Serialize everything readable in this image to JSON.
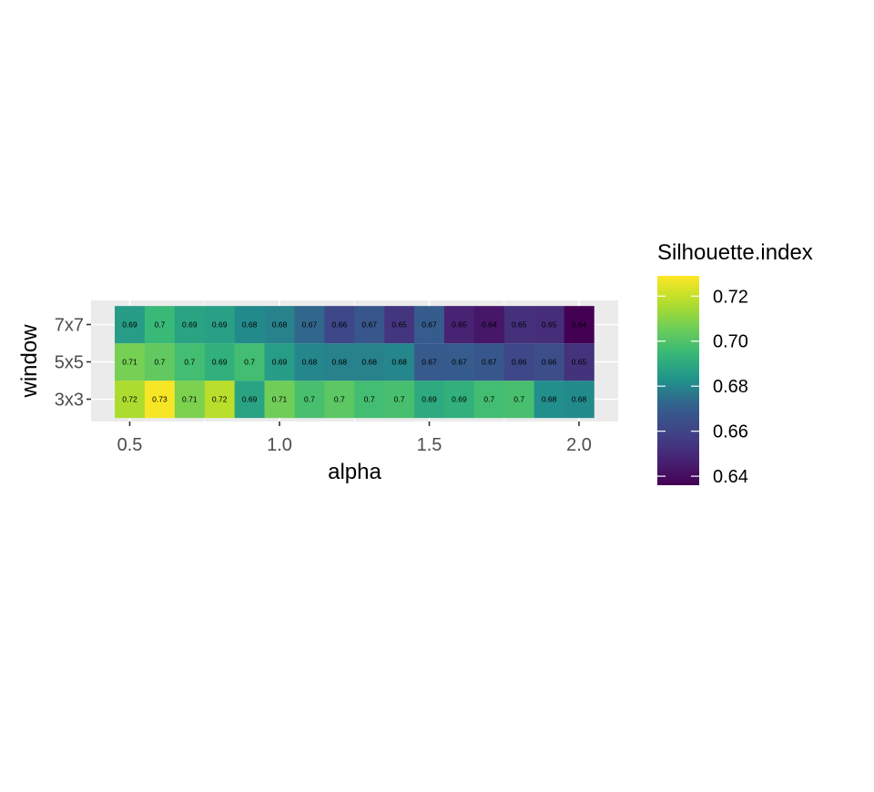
{
  "chart_data": {
    "type": "heatmap",
    "title": "",
    "xlabel": "alpha",
    "ylabel": "window",
    "x": [
      0.5,
      0.6,
      0.7,
      0.8,
      0.9,
      1.0,
      1.1,
      1.2,
      1.3,
      1.4,
      1.5,
      1.6,
      1.7,
      1.8,
      1.9,
      2.0
    ],
    "x_ticks": [
      0.5,
      1.0,
      1.5,
      2.0
    ],
    "x_tick_labels": [
      "0.5",
      "1.0",
      "1.5",
      "2.0"
    ],
    "xlim": [
      0.37,
      2.11
    ],
    "y": [
      "3x3",
      "5x5",
      "7x7"
    ],
    "values": [
      [
        0.72,
        0.73,
        0.71,
        0.72,
        0.69,
        0.71,
        0.7,
        0.7,
        0.7,
        0.7,
        0.69,
        0.69,
        0.7,
        0.7,
        0.68,
        0.68
      ],
      [
        0.71,
        0.7,
        0.7,
        0.69,
        0.7,
        0.69,
        0.68,
        0.68,
        0.68,
        0.68,
        0.67,
        0.67,
        0.67,
        0.66,
        0.66,
        0.65
      ],
      [
        0.69,
        0.7,
        0.69,
        0.69,
        0.68,
        0.68,
        0.67,
        0.66,
        0.67,
        0.65,
        0.67,
        0.65,
        0.64,
        0.65,
        0.65,
        0.64
      ]
    ],
    "cell_labels": [
      [
        "0.72",
        "0.73",
        "0.71",
        "0.72",
        "0.69",
        "0.71",
        "0.7",
        "0.7",
        "0.7",
        "0.7",
        "0.69",
        "0.69",
        "0.7",
        "0.7",
        "0.68",
        "0.68"
      ],
      [
        "0.71",
        "0.7",
        "0.7",
        "0.69",
        "0.7",
        "0.69",
        "0.68",
        "0.68",
        "0.68",
        "0.68",
        "0.67",
        "0.67",
        "0.67",
        "0.66",
        "0.66",
        "0.65"
      ],
      [
        "0.69",
        "0.7",
        "0.69",
        "0.69",
        "0.68",
        "0.68",
        "0.67",
        "0.66",
        "0.67",
        "0.65",
        "0.67",
        "0.65",
        "0.64",
        "0.65",
        "0.65",
        "0.64"
      ]
    ],
    "fill_values": [
      [
        0.716,
        0.728,
        0.708,
        0.718,
        0.688,
        0.706,
        0.698,
        0.702,
        0.697,
        0.698,
        0.69,
        0.692,
        0.697,
        0.698,
        0.682,
        0.681
      ],
      [
        0.707,
        0.703,
        0.697,
        0.692,
        0.697,
        0.686,
        0.68,
        0.679,
        0.679,
        0.68,
        0.669,
        0.67,
        0.668,
        0.661,
        0.664,
        0.653
      ],
      [
        0.686,
        0.695,
        0.688,
        0.687,
        0.681,
        0.679,
        0.673,
        0.661,
        0.668,
        0.654,
        0.67,
        0.647,
        0.643,
        0.652,
        0.651,
        0.636
      ]
    ],
    "legend": {
      "title": "Silhouette.index",
      "ticks": [
        0.64,
        0.66,
        0.68,
        0.7,
        0.72
      ],
      "tick_labels": [
        "0.64",
        "0.66",
        "0.68",
        "0.70",
        "0.72"
      ],
      "range": [
        0.636,
        0.729
      ],
      "colormap": "viridis",
      "placement": "right"
    },
    "grid": true,
    "colors": {
      "panel_background": "#ebebeb",
      "gridline": "#ffffff",
      "axis_text": "#4d4d4d",
      "axis_title": "#000000",
      "cell_label": "#000000"
    }
  }
}
